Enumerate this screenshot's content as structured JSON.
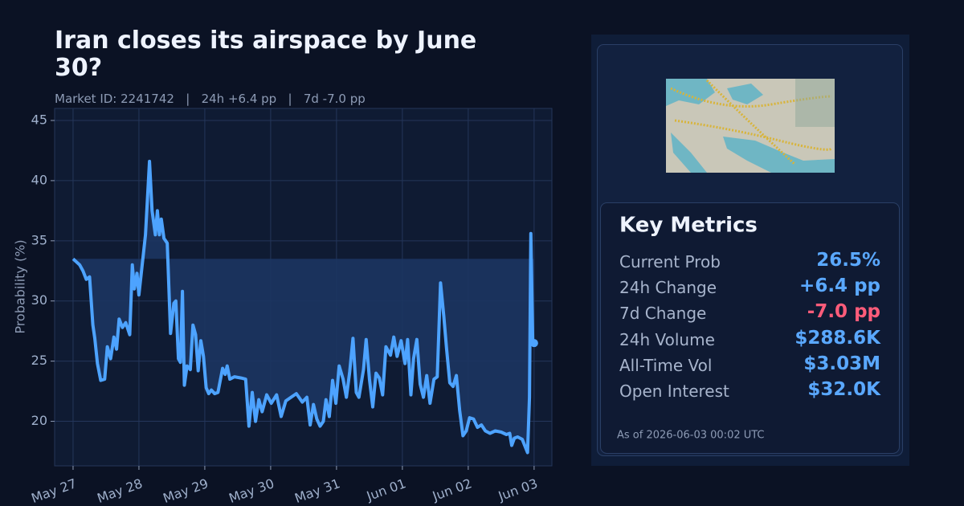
{
  "chart_data": {
    "type": "line",
    "title": "Iran closes its airspace by June 30?",
    "subtitle": "Market ID: 2241742   |   24h +6.4 pp   |   7d -7.0 pp",
    "ylabel": "Probability (%)",
    "color": "#4da3ff",
    "grid": true,
    "xlim": [
      -0.28,
      7.27
    ],
    "ylim": [
      16.3,
      46
    ],
    "yticks": [
      20,
      25,
      30,
      35,
      40,
      45
    ],
    "xticks": [
      {
        "value": 0,
        "label": "May 27"
      },
      {
        "value": 1,
        "label": "May 28"
      },
      {
        "value": 2,
        "label": "May 29"
      },
      {
        "value": 3,
        "label": "May 30"
      },
      {
        "value": 4,
        "label": "May 31"
      },
      {
        "value": 5,
        "label": "Jun 01"
      },
      {
        "value": 6,
        "label": "Jun 02"
      },
      {
        "value": 7,
        "label": "Jun 03"
      }
    ],
    "x": [
      0,
      0.1,
      0.15,
      0.2,
      0.25,
      0.3,
      0.33,
      0.37,
      0.42,
      0.48,
      0.52,
      0.57,
      0.62,
      0.66,
      0.7,
      0.75,
      0.8,
      0.86,
      0.9,
      0.93,
      0.97,
      1.0,
      1.05,
      1.1,
      1.16,
      1.2,
      1.25,
      1.28,
      1.31,
      1.34,
      1.38,
      1.43,
      1.48,
      1.53,
      1.56,
      1.6,
      1.63,
      1.66,
      1.69,
      1.73,
      1.78,
      1.82,
      1.86,
      1.9,
      1.94,
      1.98,
      2.02,
      2.06,
      2.1,
      2.15,
      2.2,
      2.27,
      2.31,
      2.34,
      2.38,
      2.45,
      2.55,
      2.62,
      2.67,
      2.72,
      2.77,
      2.82,
      2.87,
      2.94,
      3.01,
      3.09,
      3.16,
      3.23,
      3.31,
      3.39,
      3.48,
      3.55,
      3.6,
      3.65,
      3.7,
      3.75,
      3.8,
      3.84,
      3.89,
      3.94,
      3.99,
      4.04,
      4.1,
      4.15,
      4.2,
      4.25,
      4.3,
      4.34,
      4.41,
      4.45,
      4.5,
      4.55,
      4.6,
      4.65,
      4.7,
      4.75,
      4.82,
      4.87,
      4.92,
      4.98,
      5.04,
      5.08,
      5.13,
      5.17,
      5.22,
      5.27,
      5.32,
      5.37,
      5.42,
      5.48,
      5.53,
      5.58,
      5.63,
      5.67,
      5.72,
      5.77,
      5.82,
      5.87,
      5.92,
      5.97,
      6.02,
      6.08,
      6.14,
      6.2,
      6.26,
      6.33,
      6.41,
      6.5,
      6.58,
      6.63,
      6.66,
      6.7,
      6.75,
      6.82,
      6.9,
      6.93,
      6.95,
      6.98,
      7.0
    ],
    "values": [
      33.5,
      33.0,
      32.5,
      31.8,
      32.0,
      28.0,
      26.9,
      24.8,
      23.4,
      23.5,
      26.2,
      25.2,
      27.0,
      26.0,
      28.5,
      27.8,
      28.2,
      27.2,
      33.0,
      31.0,
      32.3,
      30.5,
      33.0,
      35.5,
      41.6,
      37.5,
      35.5,
      37.5,
      35.5,
      36.8,
      35.2,
      34.8,
      27.3,
      29.8,
      30.0,
      25.2,
      24.9,
      30.8,
      23.0,
      24.6,
      24.3,
      28.0,
      27.2,
      24.2,
      26.7,
      25.4,
      22.8,
      22.3,
      22.6,
      22.3,
      22.4,
      24.4,
      23.9,
      24.6,
      23.5,
      23.7,
      23.6,
      23.5,
      19.6,
      22.4,
      20.0,
      21.8,
      20.8,
      22.2,
      21.5,
      22.2,
      20.4,
      21.7,
      22.0,
      22.3,
      21.6,
      22.0,
      19.7,
      21.4,
      20.2,
      19.6,
      20.0,
      21.8,
      20.4,
      23.4,
      21.5,
      24.6,
      23.5,
      22.0,
      24.1,
      26.9,
      22.4,
      22.0,
      24.3,
      26.8,
      23.5,
      21.2,
      24.0,
      23.6,
      22.2,
      26.2,
      25.5,
      27.0,
      25.4,
      26.7,
      24.8,
      26.8,
      22.2,
      25.2,
      26.8,
      23.1,
      22.0,
      23.8,
      21.5,
      23.5,
      23.7,
      31.5,
      28.7,
      26.1,
      23.2,
      22.9,
      23.8,
      20.9,
      18.8,
      19.2,
      20.3,
      20.2,
      19.5,
      19.7,
      19.2,
      19.0,
      19.2,
      19.1,
      18.9,
      19.0,
      18.0,
      18.6,
      18.7,
      18.5,
      17.4,
      22.0,
      35.6,
      26.5,
      26.5
    ]
  },
  "panel": {
    "heading": "Key Metrics",
    "metrics": [
      {
        "label": "Current Prob",
        "value": "26.5%"
      },
      {
        "label": "24h Change",
        "value": "+6.4 pp"
      },
      {
        "label": "7d Change",
        "value": "-7.0 pp"
      },
      {
        "label": "24h Volume",
        "value": "$288.6K"
      },
      {
        "label": "All-Time Vol",
        "value": "$3.03M"
      },
      {
        "label": "Open Interest",
        "value": "$32.0K"
      }
    ],
    "as_of": "As of 2026-06-03 00:02 UTC"
  }
}
